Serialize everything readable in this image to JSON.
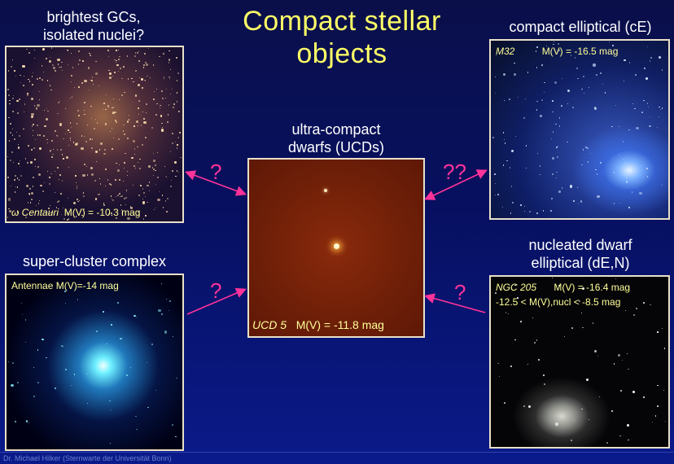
{
  "slide": {
    "title_lines": [
      "Compact stellar",
      "objects"
    ],
    "footer": "Dr. Michael Hilker (Sternwarte der Universität Bonn)"
  },
  "labels": {
    "top_left": [
      "brightest GCs,",
      "isolated nuclei?"
    ],
    "top_right": [
      "compact elliptical (cE)"
    ],
    "center": [
      "ultra-compact",
      "dwarfs (UCDs)"
    ],
    "bottom_left": [
      "super-cluster complex"
    ],
    "bottom_right": [
      "nucleated dwarf",
      "elliptical (dE,N)"
    ]
  },
  "panels": {
    "omega": {
      "caption_name": "ω Centauri",
      "caption_mag": "M(V) = -10.3 mag"
    },
    "cE": {
      "caption_name": "M32",
      "caption_mag": "M(V) = -16.5 mag"
    },
    "ucd": {
      "caption_name": "UCD 5",
      "caption_mag": "M(V) = -11.8 mag"
    },
    "antennae": {
      "caption": "Antennae M(V)=-14 mag"
    },
    "dEN": {
      "caption_name": "NGC 205",
      "caption_mag": "M(V) = -16.4 mag",
      "caption_line2": "-12.5 < M(V),nucl < -8.5 mag"
    }
  },
  "question_marks": {
    "top_left": "?",
    "top_right": "??",
    "bottom_left": "?",
    "bottom_right": "?"
  },
  "colors": {
    "title": "#ffff66",
    "caption": "#ffff99",
    "arrow": "#ff3399",
    "background": "#0a1a8a"
  }
}
